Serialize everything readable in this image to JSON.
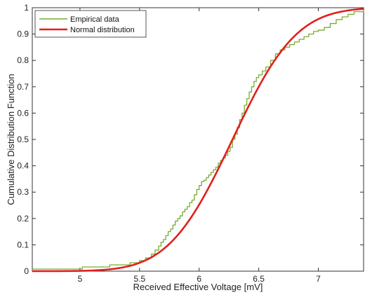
{
  "chart_data": {
    "type": "line",
    "xlabel": "Received Effective Voltage [mV]",
    "ylabel": "Cumulative Distribution Function",
    "xlim": [
      4.6,
      7.38
    ],
    "ylim": [
      0,
      1
    ],
    "x_ticks": [
      5,
      5.5,
      6,
      6.5,
      7
    ],
    "x_tick_labels": [
      "5",
      "5.5",
      "6",
      "6.5",
      "7"
    ],
    "y_ticks": [
      0,
      0.1,
      0.2,
      0.3,
      0.4,
      0.5,
      0.6,
      0.7,
      0.8,
      0.9,
      1
    ],
    "y_tick_labels": [
      "0",
      "0.1",
      "0.2",
      "0.3",
      "0.4",
      "0.5",
      "0.6",
      "0.7",
      "0.8",
      "0.9",
      "1"
    ],
    "grid": false,
    "legend_position": "top-left",
    "series": [
      {
        "name": "Empirical data",
        "kind": "step",
        "color": "#77ac30",
        "x": [
          4.6,
          5.02,
          5.25,
          5.42,
          5.5,
          5.55,
          5.6,
          5.63,
          5.66,
          5.68,
          5.7,
          5.72,
          5.74,
          5.76,
          5.78,
          5.8,
          5.82,
          5.84,
          5.86,
          5.88,
          5.9,
          5.92,
          5.94,
          5.96,
          5.98,
          6.0,
          6.02,
          6.04,
          6.06,
          6.08,
          6.1,
          6.12,
          6.14,
          6.16,
          6.18,
          6.2,
          6.22,
          6.24,
          6.26,
          6.28,
          6.3,
          6.32,
          6.34,
          6.36,
          6.38,
          6.4,
          6.42,
          6.44,
          6.46,
          6.48,
          6.5,
          6.53,
          6.56,
          6.6,
          6.64,
          6.68,
          6.72,
          6.76,
          6.8,
          6.84,
          6.88,
          6.92,
          6.96,
          7.0,
          7.05,
          7.1,
          7.15,
          7.2,
          7.25,
          7.3,
          7.38
        ],
        "y": [
          0.008,
          0.016,
          0.024,
          0.032,
          0.04,
          0.05,
          0.065,
          0.08,
          0.095,
          0.11,
          0.12,
          0.135,
          0.15,
          0.16,
          0.175,
          0.19,
          0.2,
          0.21,
          0.225,
          0.235,
          0.245,
          0.26,
          0.27,
          0.29,
          0.31,
          0.325,
          0.34,
          0.345,
          0.355,
          0.365,
          0.375,
          0.385,
          0.395,
          0.41,
          0.42,
          0.43,
          0.44,
          0.455,
          0.47,
          0.5,
          0.52,
          0.545,
          0.575,
          0.6,
          0.63,
          0.655,
          0.68,
          0.7,
          0.72,
          0.735,
          0.745,
          0.76,
          0.775,
          0.8,
          0.825,
          0.84,
          0.85,
          0.86,
          0.87,
          0.88,
          0.89,
          0.9,
          0.91,
          0.915,
          0.925,
          0.94,
          0.955,
          0.965,
          0.975,
          0.985,
          0.99
        ]
      },
      {
        "name": "Normal distribution",
        "kind": "normal_cdf",
        "color": "#e0201b",
        "mean": 6.28,
        "std": 0.42
      }
    ]
  }
}
